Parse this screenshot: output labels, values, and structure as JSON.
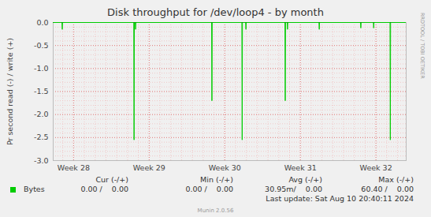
{
  "chart_data": {
    "type": "line",
    "title": "Disk throughput for /dev/loop4 - by month",
    "ylabel": "Pr second read (-) / write (+)",
    "x": [
      27.73,
      27.846,
      27.85,
      27.854,
      28.796,
      28.8,
      28.804,
      28.816,
      28.82,
      28.824,
      29.826,
      29.83,
      29.834,
      30.226,
      30.23,
      30.234,
      30.276,
      30.28,
      30.284,
      30.796,
      30.8,
      30.804,
      30.826,
      30.83,
      30.834,
      31.246,
      31.25,
      31.254,
      31.796,
      31.8,
      31.804,
      31.966,
      31.97,
      31.974,
      32.186,
      32.19,
      32.194,
      32.4
    ],
    "series": [
      {
        "name": "Bytes",
        "color": "#00cc00",
        "values": [
          0,
          0,
          -0.15,
          0,
          0,
          -2.55,
          0,
          0,
          -0.15,
          0,
          0,
          -1.7,
          0,
          0,
          -2.55,
          0,
          0,
          -0.15,
          0,
          0,
          -1.7,
          0,
          0,
          -0.15,
          0,
          0,
          -0.15,
          0,
          0,
          -0.12,
          0,
          0,
          -0.12,
          0,
          0,
          -2.55,
          0,
          0
        ]
      }
    ],
    "xlim": [
      27.73,
      32.4
    ],
    "xticks": [
      {
        "value": 28,
        "label": "Week 28"
      },
      {
        "value": 29,
        "label": "Week 29"
      },
      {
        "value": 30,
        "label": "Week 30"
      },
      {
        "value": 31,
        "label": "Week 31"
      },
      {
        "value": 32,
        "label": "Week 32"
      }
    ],
    "ylim": [
      -3,
      0
    ],
    "yticks": [
      {
        "value": -3,
        "label": "-3.0"
      },
      {
        "value": -2.5,
        "label": "-2.5"
      },
      {
        "value": -2,
        "label": "-2.0"
      },
      {
        "value": -1.5,
        "label": "-1.5"
      },
      {
        "value": -1,
        "label": "-1.0"
      },
      {
        "value": -0.5,
        "label": "-0.5"
      },
      {
        "value": 0,
        "label": "0.0"
      }
    ],
    "grid": true,
    "summary": {
      "headers": [
        "Cur (-/+)",
        "Min (-/+)",
        "Avg (-/+)",
        "Max (-/+)"
      ],
      "rows": [
        {
          "name": "Bytes",
          "values": [
            "0.00 /    0.00",
            "0.00 /    0.00",
            "30.95m/    0.00",
            "60.40 /    0.00"
          ]
        }
      ]
    },
    "footer": "Last update: Sat Aug 10 20:40:11 2024",
    "credit": "Munin 2.0.56",
    "watermark": "RRDTOOL / TOBI OETIKER"
  }
}
